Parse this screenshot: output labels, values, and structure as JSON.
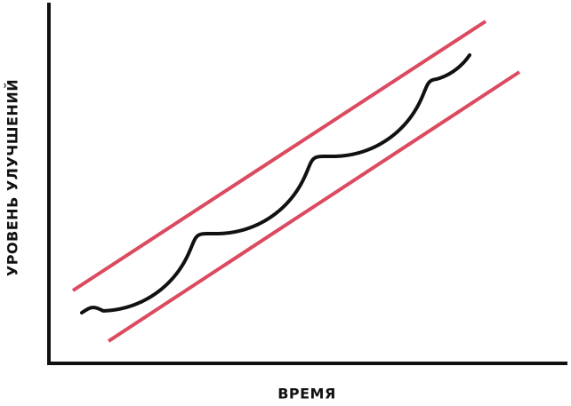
{
  "labels": {
    "x_axis": "ВРЕМЯ",
    "y_axis": "УРОВЕНЬ УЛУЧШЕНИЙ"
  },
  "colors": {
    "axis": "#111111",
    "bounds": "#dc4a5f",
    "trend": "#111111"
  }
}
